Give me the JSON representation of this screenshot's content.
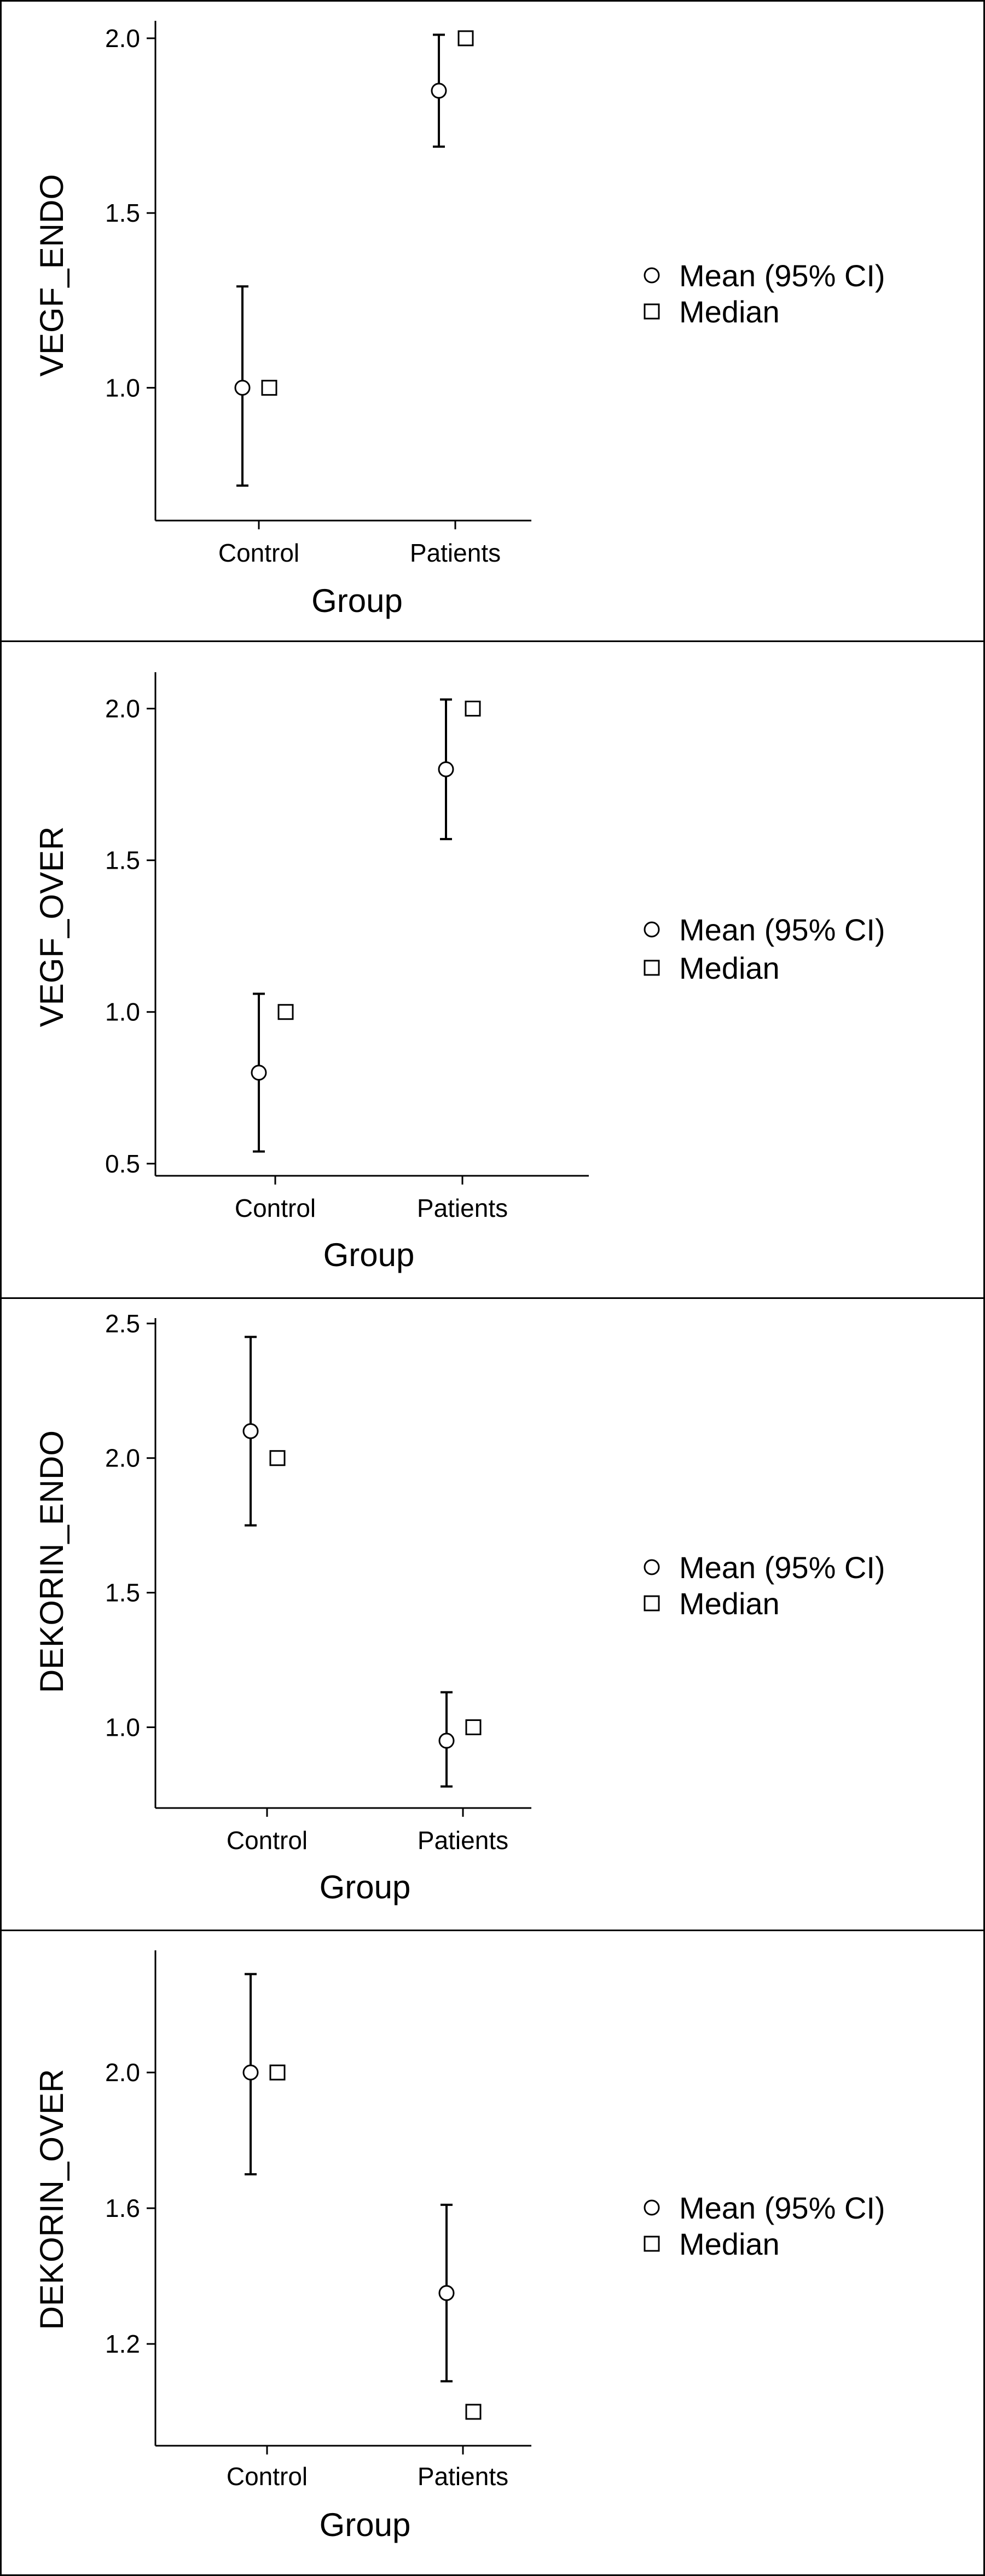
{
  "figure": {
    "color_axis": "#000000",
    "color_marker_fill": "#ffffff"
  },
  "chart_data": [
    {
      "type": "scatter",
      "title": "",
      "xlabel": "Group",
      "ylabel": "VEGF_ENDO",
      "categories": [
        "Control",
        "Patients"
      ],
      "y_ticks": [
        "1.0",
        "1.5",
        "2.0"
      ],
      "y_tick_values": [
        1.0,
        1.5,
        2.0
      ],
      "ylim": [
        0.62,
        2.05
      ],
      "series": [
        {
          "name": "Mean (95% CI)",
          "marker": "circle",
          "values": [
            1.0,
            1.85
          ],
          "ci_low": [
            0.72,
            1.69
          ],
          "ci_high": [
            1.29,
            2.01
          ]
        },
        {
          "name": "Median",
          "marker": "square",
          "values": [
            1.0,
            2.0
          ]
        }
      ],
      "legend": "right",
      "grid": false
    },
    {
      "type": "scatter",
      "title": "",
      "xlabel": "Group",
      "ylabel": "VEGF_OVER",
      "categories": [
        "Control",
        "Patients"
      ],
      "y_ticks": [
        "0.5",
        "1.0",
        "1.5",
        "2.0"
      ],
      "y_tick_values": [
        0.5,
        1.0,
        1.5,
        2.0
      ],
      "ylim": [
        0.46,
        2.12
      ],
      "series": [
        {
          "name": "Mean (95% CI)",
          "marker": "circle",
          "values": [
            0.8,
            1.8
          ],
          "ci_low": [
            0.54,
            1.57
          ],
          "ci_high": [
            1.06,
            2.03
          ]
        },
        {
          "name": "Median",
          "marker": "square",
          "values": [
            1.0,
            2.0
          ]
        }
      ],
      "legend": "right",
      "grid": false
    },
    {
      "type": "scatter",
      "title": "",
      "xlabel": "Group",
      "ylabel": "DEKORIN_ENDO",
      "categories": [
        "Control",
        "Patients"
      ],
      "y_ticks": [
        "1.0",
        "1.5",
        "2.0",
        "2.5"
      ],
      "y_tick_values": [
        1.0,
        1.5,
        2.0,
        2.5
      ],
      "ylim": [
        0.7,
        2.52
      ],
      "series": [
        {
          "name": "Mean (95% CI)",
          "marker": "circle",
          "values": [
            2.1,
            0.95
          ],
          "ci_low": [
            1.75,
            0.78
          ],
          "ci_high": [
            2.45,
            1.13
          ]
        },
        {
          "name": "Median",
          "marker": "square",
          "values": [
            2.0,
            1.0
          ]
        }
      ],
      "legend": "right",
      "grid": false
    },
    {
      "type": "scatter",
      "title": "",
      "xlabel": "Group",
      "ylabel": "DEKORIN_OVER",
      "categories": [
        "Control",
        "Patients"
      ],
      "y_ticks": [
        "1.2",
        "1.6",
        "2.0"
      ],
      "y_tick_values": [
        1.2,
        1.6,
        2.0
      ],
      "ylim": [
        0.9,
        2.36
      ],
      "series": [
        {
          "name": "Mean (95% CI)",
          "marker": "circle",
          "values": [
            2.0,
            1.35
          ],
          "ci_low": [
            1.7,
            1.09
          ],
          "ci_high": [
            2.29,
            1.61
          ]
        },
        {
          "name": "Median",
          "marker": "square",
          "values": [
            2.0,
            1.0
          ]
        }
      ],
      "legend": "right",
      "grid": false
    }
  ]
}
